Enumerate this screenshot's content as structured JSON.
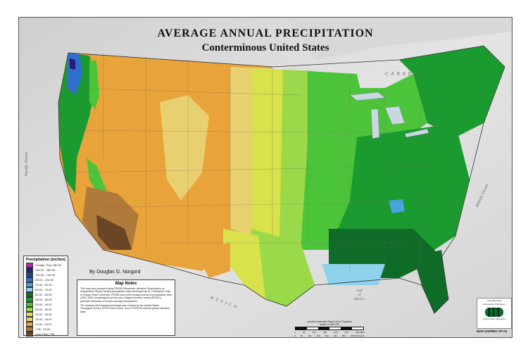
{
  "title": "AVERAGE ANNUAL PRECIPITATION",
  "subtitle": "Conterminous United States",
  "author": "By Douglas G. Norgord",
  "legend": {
    "title": "Precipitation (inches)",
    "items": [
      {
        "label": "Greater Than 180.00",
        "color": "#c020c0"
      },
      {
        "label": "140.00 - 180.00",
        "color": "#2a1b7a"
      },
      {
        "label": "100.00 - 140.00",
        "color": "#1f3fa8"
      },
      {
        "label": "90.00 - 100.00",
        "color": "#2f6fd0"
      },
      {
        "label": "70.00 - 90.00",
        "color": "#49a3e0"
      },
      {
        "label": "60.00 - 70.00",
        "color": "#8ed2ec"
      },
      {
        "label": "50.00 - 60.00",
        "color": "#0f6b28"
      },
      {
        "label": "40.00 - 50.00",
        "color": "#1b9a30"
      },
      {
        "label": "30.00 - 40.00",
        "color": "#4cc43a"
      },
      {
        "label": "25.00 - 30.00",
        "color": "#9ad94a"
      },
      {
        "label": "20.00 - 25.00",
        "color": "#d8e24a"
      },
      {
        "label": "15.00 - 20.00",
        "color": "#e8d070"
      },
      {
        "label": "10.00 - 15.00",
        "color": "#e8a33a"
      },
      {
        "label": "7.50 - 10.00",
        "color": "#b07a3a"
      },
      {
        "label": "Less Than 7.50",
        "color": "#6a4626"
      }
    ]
  },
  "notes": {
    "title": "Map Notes",
    "p1": "This map was prepared using PRISM (Parameter-elevation Regressions on Independent Slopes Model) precipitation data developed by Dr. Christopher Daly of Oregon State University. PRISM uses point measurements of precipitation data (1961-1990 climatological period) and a digital elevation model (DEM) to generate estimates of annual average precipitation.",
    "p2": "The shaded-relief background image was created by the United States Geological Survey, EROS Data Center, from GTOPO30 derived global elevation data."
  },
  "places": {
    "canada": "C A N A D A",
    "mexico": "M E X I C O",
    "pacific": "Pacific Ocean",
    "atlantic": "Atlantic Ocean",
    "gulf1": "Gulf",
    "gulf2": "of",
    "gulf3": "Mexico"
  },
  "scale": {
    "caption1": "Lambert Azimuthal Equal-Area Projection",
    "caption2": "Scale 1:2,500,000",
    "ticks": [
      "0",
      "50",
      "100",
      "200",
      "300",
      "400",
      "500 Miles"
    ],
    "ticks2": [
      "0",
      "50",
      "100",
      "200",
      "300",
      "400",
      "500",
      "600 Kilometers"
    ]
  },
  "copyright": {
    "line1": "Copyright 2001",
    "line2": "Geographic Techniques",
    "line3": "Cloud Cover, Wisconsin"
  },
  "map_id": "MAP USPREC-ST-01"
}
